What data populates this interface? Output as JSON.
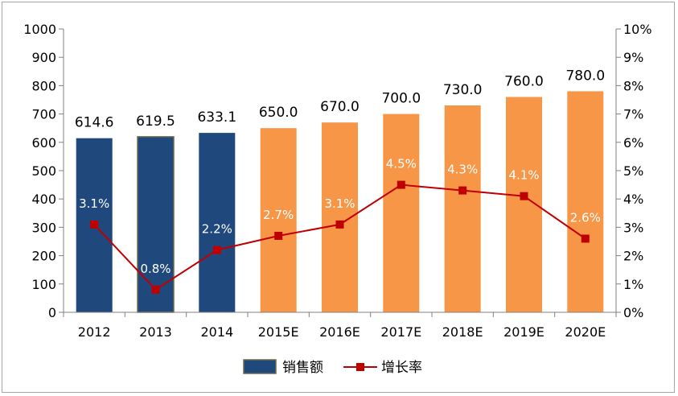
{
  "chart_data": {
    "type": "bar",
    "categories": [
      "2012",
      "2013",
      "2014",
      "2015E",
      "2016E",
      "2017E",
      "2018E",
      "2019E",
      "2020E"
    ],
    "series": [
      {
        "name": "销售额",
        "type": "bar",
        "axis": "left",
        "values": [
          614.6,
          619.5,
          633.1,
          650.0,
          670.0,
          700.0,
          730.0,
          760.0,
          780.0
        ],
        "labels": [
          "614.6",
          "619.5",
          "633.1",
          "650.0",
          "670.0",
          "700.0",
          "730.0",
          "760.0",
          "780.0"
        ],
        "actual_color": "#1f497d",
        "estimate_color": "#f79646",
        "estimate_from_index": 3
      },
      {
        "name": "增长率",
        "type": "line",
        "axis": "right",
        "values": [
          3.1,
          0.8,
          2.2,
          2.7,
          3.1,
          4.5,
          4.3,
          4.1,
          2.6
        ],
        "labels": [
          "3.1%",
          "0.8%",
          "2.2%",
          "2.7%",
          "3.1%",
          "4.5%",
          "4.3%",
          "4.1%",
          "2.6%"
        ],
        "color": "#c00000"
      }
    ],
    "left_axis": {
      "ylim": [
        0,
        1000
      ],
      "ticks": [
        "0",
        "100",
        "200",
        "300",
        "400",
        "500",
        "600",
        "700",
        "800",
        "900",
        "1000"
      ]
    },
    "right_axis": {
      "ylim": [
        0,
        10
      ],
      "ticks": [
        "0%",
        "1%",
        "2%",
        "3%",
        "4%",
        "5%",
        "6%",
        "7%",
        "8%",
        "9%",
        "10%"
      ]
    },
    "grid": false,
    "legend_position": "bottom-center"
  }
}
